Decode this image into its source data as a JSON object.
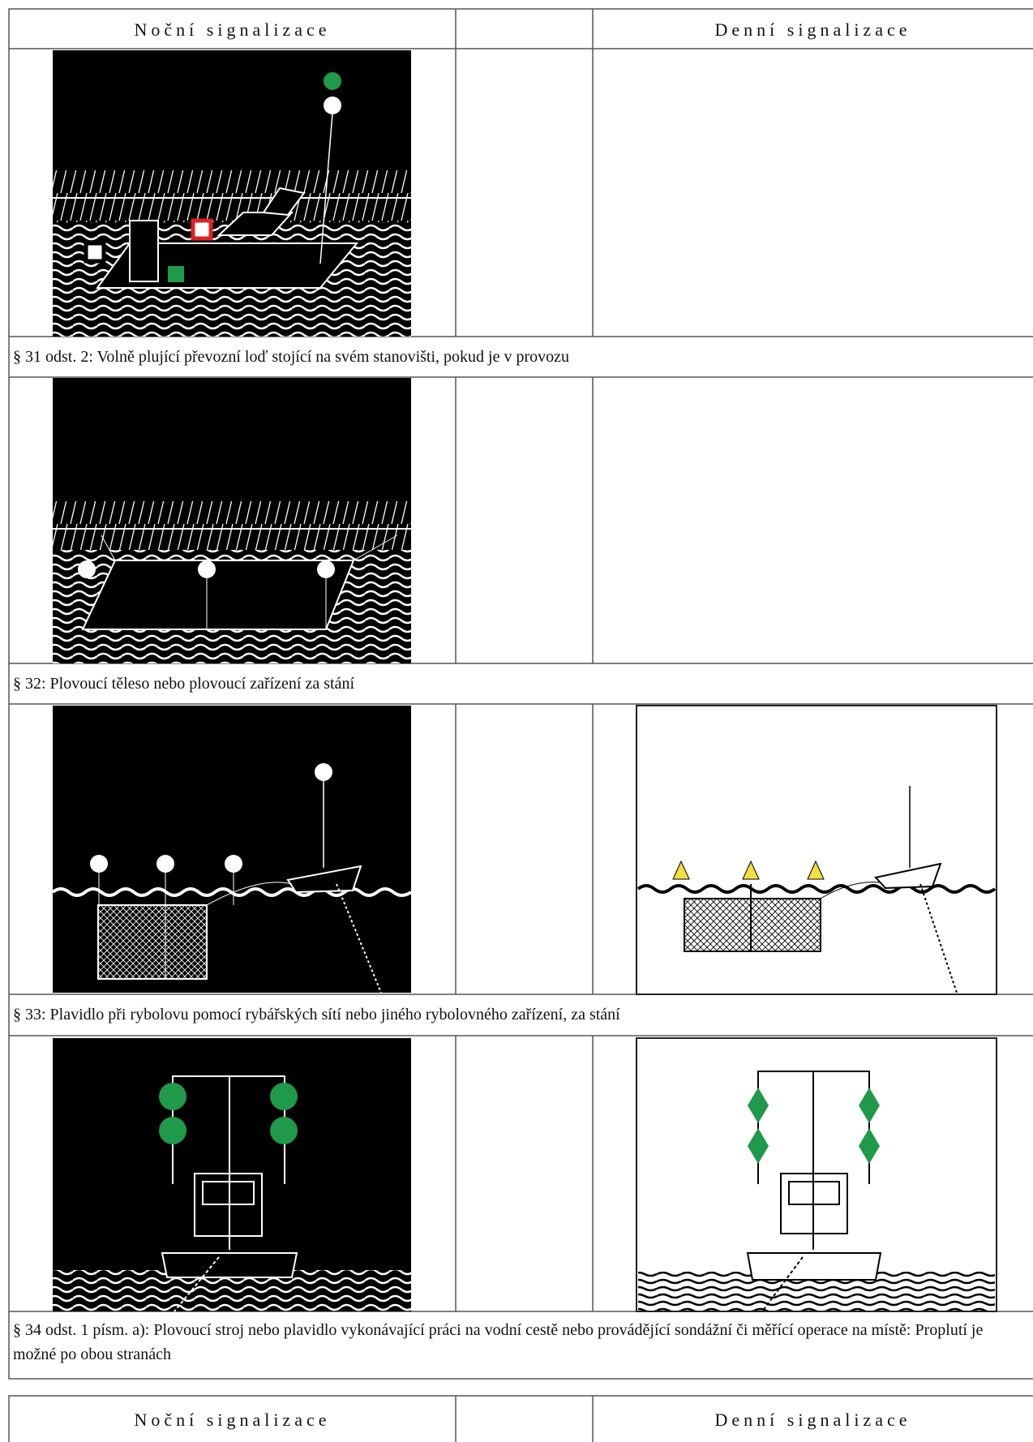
{
  "tables": [
    {
      "header": {
        "night": "Noční signalizace",
        "day": "Denní signalizace"
      },
      "rows": [
        {
          "caption": "§ 31 odst. 2: Volně plující převozní loď stojící na svém stanovišti, pokud je v provozu"
        },
        {
          "caption": "§ 32: Plovoucí těleso nebo plovoucí zařízení za stání"
        },
        {
          "caption": "§ 33: Plavidlo při rybolovu pomocí rybářských sítí nebo jiného rybolovného zařízení, za stání"
        },
        {
          "caption": "§ 34 odst. 1 písm. a): Plovoucí stroj nebo plavidlo vykonávající práci na vodní cestě nebo provádějící sondážní či měřící operace na místě: Proplutí je možné po obou stranách"
        }
      ]
    },
    {
      "header": {
        "night": "Noční signalizace",
        "day": "Denní signalizace"
      }
    }
  ]
}
